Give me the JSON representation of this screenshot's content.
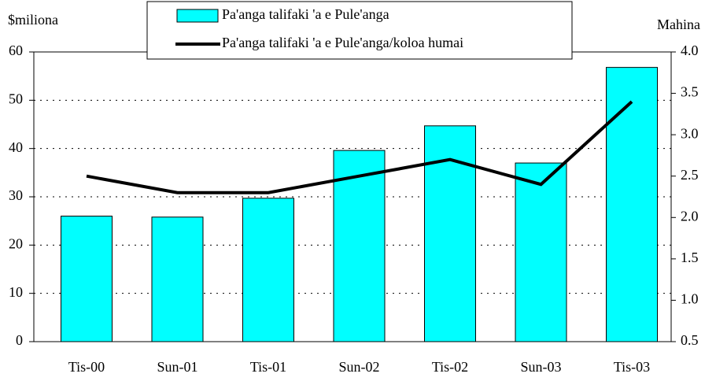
{
  "chart_data": {
    "type": "bar_line",
    "y_label": "$miliona",
    "y2_label": "Mahina",
    "categories": [
      "Tis-00",
      "Sun-01",
      "Tis-01",
      "Sun-02",
      "Tis-02",
      "Sun-03",
      "Tis-03"
    ],
    "series": [
      {
        "name": "Pa'anga talifaki 'a e Pule'anga",
        "type": "bar",
        "color": "#00ffff",
        "values": [
          26,
          25.8,
          29.7,
          39.6,
          44.7,
          37,
          56.8
        ]
      },
      {
        "name": "Pa'anga talifaki 'a e Pule'anga/koloa humai",
        "type": "line",
        "color": "#000000",
        "axis": "y2",
        "values": [
          2.5,
          2.3,
          2.3,
          2.5,
          2.7,
          2.4,
          3.4
        ]
      }
    ],
    "ylim": [
      0,
      60
    ],
    "yticks": [
      0,
      10,
      20,
      30,
      40,
      50,
      60
    ],
    "y2lim": [
      0.5,
      4
    ],
    "y2ticks": [
      0.5,
      {
        "value": 1,
        "label": "1.0"
      },
      1.5,
      {
        "value": 2,
        "label": "2.0"
      },
      2.5,
      {
        "value": 3,
        "label": "3.0"
      },
      3.5,
      {
        "value": 4,
        "label": "4.0"
      }
    ],
    "grid": true,
    "legend": "top"
  }
}
